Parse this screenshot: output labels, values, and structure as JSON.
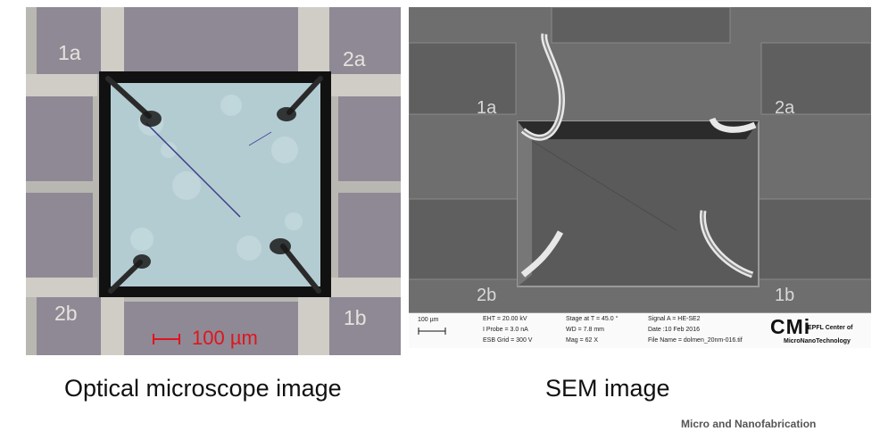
{
  "optical_panel": {
    "pad_labels": [
      "1a",
      "2a",
      "2b",
      "1b"
    ],
    "scale_bar": "100 µm"
  },
  "sem_panel": {
    "pad_labels": [
      "1a",
      "2a",
      "2b",
      "1b"
    ],
    "info": {
      "scale": "100 µm",
      "eht": "EHT = 20.00 kV",
      "iprobe": "I Probe =   3.0 nA",
      "esb": "ESB Grid =   300 V",
      "stage": "Stage at T =  45.0 °",
      "wd": "WD =   7.8 mm",
      "mag": "Mag =    62 X",
      "signal": "Signal A = HE-SE2",
      "date": "Date :10 Feb 2016",
      "file": "File Name = dolmen_20nm-016.tif",
      "logo": "CMi",
      "logo_line1": "EPFL Center of",
      "logo_line2": "MicroNanoTechnology"
    }
  },
  "captions": {
    "left": "Optical microscope image",
    "right": "SEM image"
  },
  "footer": "Micro and Nanofabrication"
}
